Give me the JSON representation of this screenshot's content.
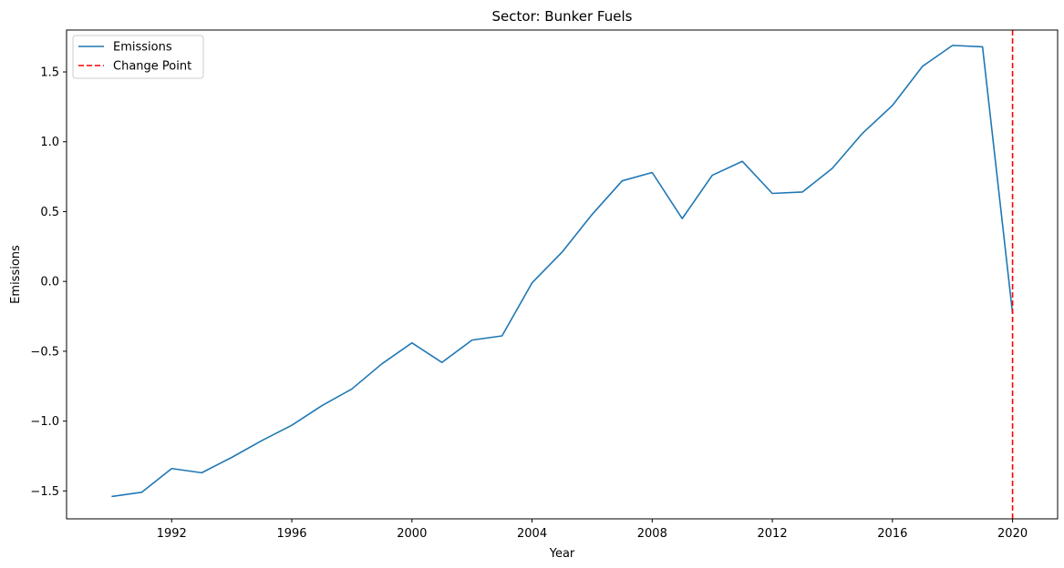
{
  "chart_data": {
    "type": "line",
    "title": "Sector: Bunker Fuels",
    "xlabel": "Year",
    "ylabel": "Emissions",
    "xlim": [
      1988.5,
      2021.5
    ],
    "ylim": [
      -1.7,
      1.8
    ],
    "x_ticks": [
      1992,
      1996,
      2000,
      2004,
      2008,
      2012,
      2016,
      2020
    ],
    "x_tick_labels": [
      "1992",
      "1996",
      "2000",
      "2004",
      "2008",
      "2012",
      "2016",
      "2020"
    ],
    "y_ticks": [
      -1.5,
      -1.0,
      -0.5,
      0.0,
      0.5,
      1.0,
      1.5
    ],
    "y_tick_labels": [
      "−1.5",
      "−1.0",
      "−0.5",
      "0.0",
      "0.5",
      "1.0",
      "1.5"
    ],
    "grid": false,
    "legend_position": "top-left",
    "series": [
      {
        "name": "Emissions",
        "color": "#1f77b4",
        "x": [
          1990,
          1991,
          1992,
          1993,
          1994,
          1995,
          1996,
          1997,
          1998,
          1999,
          2000,
          2001,
          2002,
          2003,
          2004,
          2005,
          2006,
          2007,
          2008,
          2009,
          2010,
          2011,
          2012,
          2013,
          2014,
          2015,
          2016,
          2017,
          2018,
          2019,
          2020
        ],
        "y": [
          -1.54,
          -1.51,
          -1.34,
          -1.37,
          -1.26,
          -1.14,
          -1.03,
          -0.89,
          -0.77,
          -0.59,
          -0.44,
          -0.58,
          -0.42,
          -0.39,
          -0.01,
          0.21,
          0.48,
          0.72,
          0.78,
          0.45,
          0.76,
          0.86,
          0.63,
          0.64,
          0.81,
          1.06,
          1.26,
          1.54,
          1.69,
          1.68,
          -0.23
        ]
      }
    ],
    "change_point": {
      "name": "Change Point",
      "x": 2020,
      "color": "#ff0000"
    }
  }
}
